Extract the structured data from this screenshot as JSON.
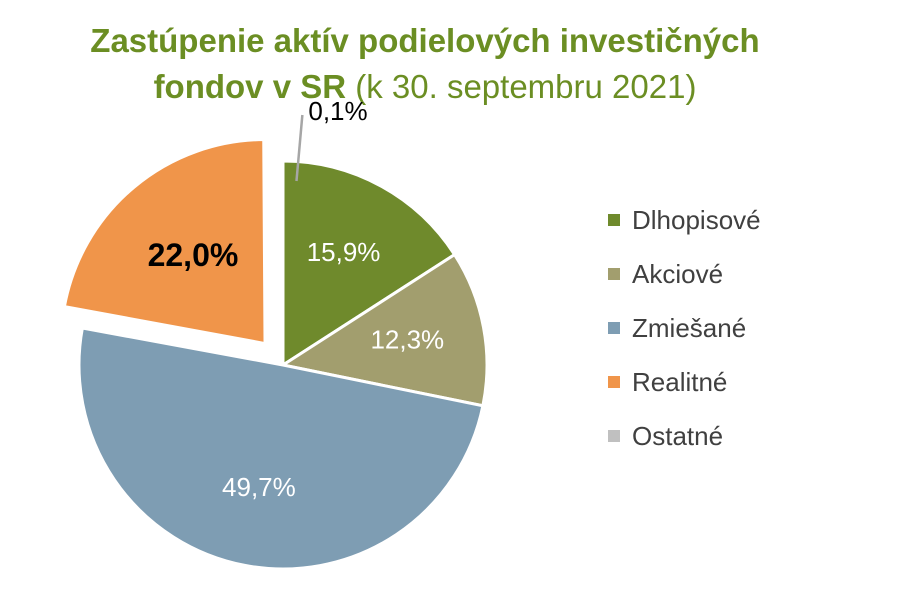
{
  "chart_data": {
    "type": "pie",
    "title": "Zastúpenie aktív podielových investičných fondov v SR",
    "subtitle": "(k 30. septembru 2021)",
    "slices": [
      {
        "name": "Dlhopisové",
        "value": 15.9,
        "label": "15,9%",
        "color": "#6f8a2c",
        "label_color": "#ffffff",
        "bold": false
      },
      {
        "name": "Akciové",
        "value": 12.3,
        "label": "12,3%",
        "color": "#a29e6e",
        "label_color": "#ffffff",
        "bold": false
      },
      {
        "name": "Zmiešané",
        "value": 49.7,
        "label": "49,7%",
        "color": "#7e9db3",
        "label_color": "#ffffff",
        "bold": false
      },
      {
        "name": "Realitné",
        "value": 22.0,
        "label": "22,0%",
        "color": "#f0954a",
        "label_color": "#000000",
        "bold": true,
        "exploded": true
      },
      {
        "name": "Ostatné",
        "value": 0.1,
        "label": "0,1%",
        "color": "#c0c0c0",
        "label_color": "#000000",
        "bold": false
      }
    ],
    "legend_position": "right"
  }
}
